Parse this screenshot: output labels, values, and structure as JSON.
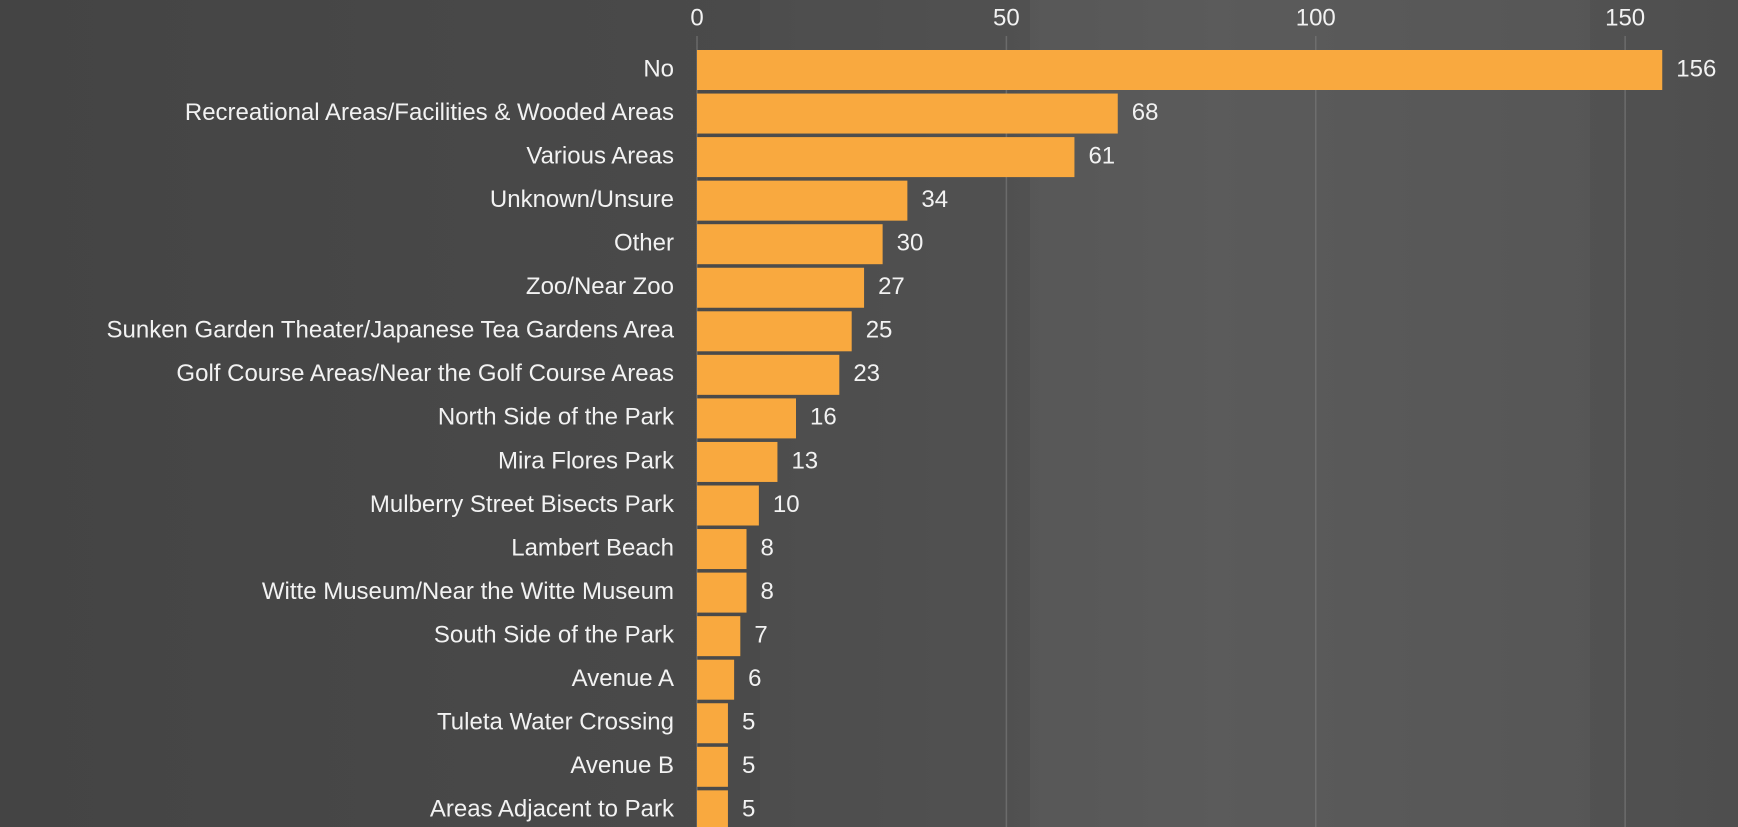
{
  "chart_data": {
    "type": "bar",
    "orientation": "horizontal",
    "categories": [
      "No",
      "Recreational Areas/Facilities & Wooded Areas",
      "Various Areas",
      "Unknown/Unsure",
      "Other",
      "Zoo/Near Zoo",
      "Sunken Garden Theater/Japanese Tea Gardens Area",
      "Golf Course Areas/Near the Golf Course Areas",
      "North Side of the Park",
      "Mira Flores Park",
      "Mulberry Street Bisects Park",
      "Lambert Beach",
      "Witte Museum/Near the Witte Museum",
      "South Side of the Park",
      "Avenue A",
      "Tuleta Water Crossing",
      "Avenue B",
      "Areas Adjacent to Park"
    ],
    "values": [
      156,
      68,
      61,
      34,
      30,
      27,
      25,
      23,
      16,
      13,
      10,
      8,
      8,
      7,
      6,
      5,
      5,
      5
    ],
    "color": "#f9a93f",
    "xlim": [
      0,
      160
    ],
    "xticks": [
      0,
      50,
      100,
      150
    ],
    "grid": true
  }
}
